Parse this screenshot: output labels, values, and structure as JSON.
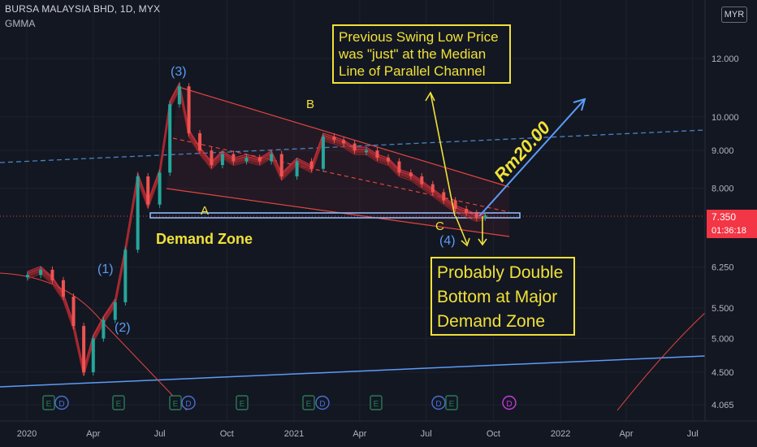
{
  "header": {
    "title": "BURSA MALAYSIA BHD, 1D, MYX",
    "indicator": "GMMA",
    "currency": "MYR"
  },
  "price_tag": {
    "price": "7.350",
    "countdown": "01:36:18"
  },
  "notes": {
    "swing_low": "Previous Swing Low Price\nwas \"just\" at the Median\nLine of Parallel Channel",
    "double_bottom": "Probably Double\nBottom at Major\nDemand Zone"
  },
  "annotations": {
    "wave1": "(1)",
    "wave2": "(2)",
    "wave3": "(3)",
    "wave4": "(4)",
    "point_a": "A",
    "point_b": "B",
    "point_c": "C",
    "demand_zone": "Demand Zone",
    "target": "Rm20.00"
  },
  "colors": {
    "background": "#131722",
    "up": "#26a69a",
    "down": "#ef5350",
    "annotation": "#f0e138",
    "blue": "#5b9cf6"
  },
  "chart_data": {
    "type": "line",
    "symbol": "BURSA MALAYSIA BHD",
    "interval": "1D",
    "exchange": "MYX",
    "scale": "log",
    "y_ticks": [
      4.065,
      4.5,
      5.0,
      5.5,
      6.25,
      8.0,
      9.0,
      10.0,
      12.0
    ],
    "x_ticks": [
      "2020",
      "Apr",
      "Jul",
      "Oct",
      "2021",
      "Apr",
      "Jul",
      "Oct",
      "2022",
      "Apr",
      "Jul"
    ],
    "events": [
      "E",
      "D",
      "E",
      "E",
      "D",
      "E",
      "E",
      "D",
      "E",
      "D",
      "E",
      "D",
      "E"
    ],
    "series": [
      {
        "name": "Close",
        "x": [
          "2020-01-02",
          "2020-01-20",
          "2020-02-05",
          "2020-02-20",
          "2020-03-05",
          "2020-03-19",
          "2020-04-01",
          "2020-04-15",
          "2020-05-01",
          "2020-05-15",
          "2020-06-01",
          "2020-06-15",
          "2020-07-01",
          "2020-07-15",
          "2020-07-28",
          "2020-08-10",
          "2020-08-25",
          "2020-09-10",
          "2020-09-25",
          "2020-10-10",
          "2020-10-28",
          "2020-11-15",
          "2020-12-01",
          "2020-12-15",
          "2021-01-05",
          "2021-01-25",
          "2021-02-10",
          "2021-02-25",
          "2021-03-10",
          "2021-03-25",
          "2021-04-10",
          "2021-04-25",
          "2021-05-10",
          "2021-05-25",
          "2021-06-10",
          "2021-06-25",
          "2021-07-10",
          "2021-07-25",
          "2021-08-10",
          "2021-08-25",
          "2021-09-08",
          "2021-09-20"
        ],
        "values": [
          6.1,
          6.2,
          6.0,
          5.7,
          5.2,
          4.5,
          5.0,
          5.3,
          5.6,
          6.6,
          8.3,
          7.6,
          8.4,
          10.4,
          11.0,
          9.5,
          9.0,
          8.6,
          8.9,
          8.7,
          8.8,
          8.7,
          8.9,
          8.3,
          8.7,
          8.5,
          9.4,
          9.3,
          9.2,
          9.0,
          9.0,
          8.8,
          8.7,
          8.4,
          8.3,
          8.1,
          7.9,
          7.7,
          7.5,
          7.4,
          7.3,
          7.35
        ]
      }
    ]
  }
}
